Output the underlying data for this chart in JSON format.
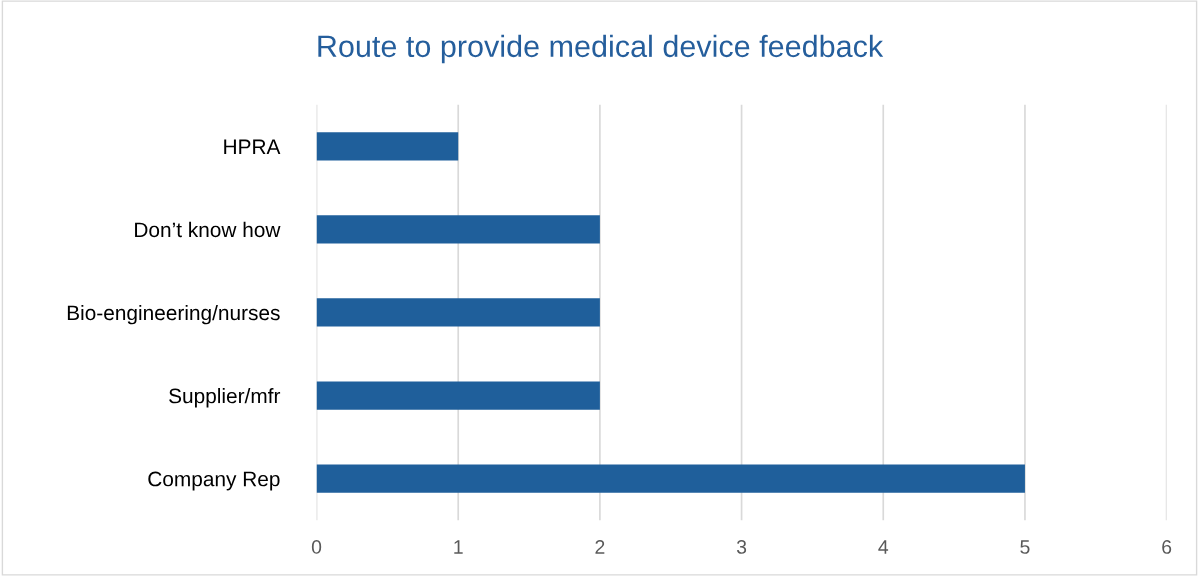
{
  "chart_data": {
    "type": "bar",
    "orientation": "horizontal",
    "title": "Route to provide medical device feedback",
    "categories": [
      "HPRA",
      "Don’t know how",
      "Bio-engineering/nurses",
      "Supplier/mfr",
      "Company Rep"
    ],
    "values": [
      1,
      2,
      2,
      2,
      5
    ],
    "color": "#1f5f9b",
    "xlim": [
      0,
      6
    ],
    "xticks": [
      0,
      1,
      2,
      3,
      4,
      5,
      6
    ],
    "grid": "x"
  }
}
